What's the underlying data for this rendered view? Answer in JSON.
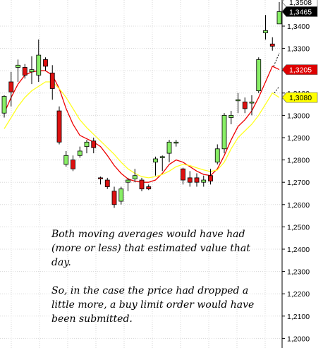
{
  "chart_data": {
    "type": "candlestick",
    "title": "",
    "xlabel": "",
    "ylabel": "",
    "ylim": [
      1.195,
      1.351
    ],
    "y_ticks": [
      "1,2000",
      "1,2100",
      "1,2200",
      "1,2300",
      "1,2400",
      "1,2500",
      "1,2600",
      "1,2700",
      "1,2800",
      "1,2900",
      "1,3000",
      "1,3100",
      "1,3200",
      "1,3300",
      "1,3400"
    ],
    "y_tick_values": [
      1.2,
      1.21,
      1.22,
      1.23,
      1.24,
      1.25,
      1.26,
      1.27,
      1.28,
      1.29,
      1.3,
      1.31,
      1.32,
      1.33,
      1.34
    ],
    "grid": true,
    "price_tags": [
      {
        "label": "1,3508",
        "value": 1.3508,
        "color": "#ffffff"
      },
      {
        "label": "1,3465",
        "value": 1.3465,
        "color": "#000000"
      },
      {
        "label": "1,3205",
        "value": 1.3205,
        "color": "#dd0000"
      },
      {
        "label": "1,3080",
        "value": 1.308,
        "color": "#ffff00"
      }
    ],
    "candles": [
      {
        "o": 1.301,
        "h": 1.309,
        "l": 1.299,
        "c": 1.3085
      },
      {
        "o": 1.315,
        "h": 1.3195,
        "l": 1.304,
        "c": 1.3105
      },
      {
        "o": 1.3215,
        "h": 1.325,
        "l": 1.315,
        "c": 1.3225
      },
      {
        "o": 1.3215,
        "h": 1.323,
        "l": 1.3165,
        "c": 1.318
      },
      {
        "o": 1.3195,
        "h": 1.3265,
        "l": 1.314,
        "c": 1.3205
      },
      {
        "o": 1.318,
        "h": 1.334,
        "l": 1.315,
        "c": 1.327
      },
      {
        "o": 1.325,
        "h": 1.326,
        "l": 1.32,
        "c": 1.322
      },
      {
        "o": 1.319,
        "h": 1.3225,
        "l": 1.307,
        "c": 1.312
      },
      {
        "o": 1.302,
        "h": 1.304,
        "l": 1.287,
        "c": 1.288
      },
      {
        "o": 1.278,
        "h": 1.284,
        "l": 1.277,
        "c": 1.282
      },
      {
        "o": 1.28,
        "h": 1.282,
        "l": 1.275,
        "c": 1.276
      },
      {
        "o": 1.282,
        "h": 1.286,
        "l": 1.281,
        "c": 1.284
      },
      {
        "o": 1.286,
        "h": 1.289,
        "l": 1.283,
        "c": 1.288
      },
      {
        "o": 1.2885,
        "h": 1.29,
        "l": 1.283,
        "c": 1.2855
      },
      {
        "o": 1.272,
        "h": 1.2725,
        "l": 1.269,
        "c": 1.2718
      },
      {
        "o": 1.271,
        "h": 1.272,
        "l": 1.267,
        "c": 1.268
      },
      {
        "o": 1.266,
        "h": 1.268,
        "l": 1.2585,
        "c": 1.26
      },
      {
        "o": 1.2615,
        "h": 1.268,
        "l": 1.26,
        "c": 1.267
      },
      {
        "o": 1.27,
        "h": 1.272,
        "l": 1.266,
        "c": 1.271
      },
      {
        "o": 1.2715,
        "h": 1.276,
        "l": 1.27,
        "c": 1.273
      },
      {
        "o": 1.271,
        "h": 1.272,
        "l": 1.266,
        "c": 1.267
      },
      {
        "o": 1.268,
        "h": 1.269,
        "l": 1.2665,
        "c": 1.267
      },
      {
        "o": 1.279,
        "h": 1.2815,
        "l": 1.273,
        "c": 1.2805
      },
      {
        "o": 1.281,
        "h": 1.282,
        "l": 1.275,
        "c": 1.2815
      },
      {
        "o": 1.283,
        "h": 1.289,
        "l": 1.279,
        "c": 1.288
      },
      {
        "o": 1.288,
        "h": 1.289,
        "l": 1.286,
        "c": 1.288
      },
      {
        "o": 1.276,
        "h": 1.2765,
        "l": 1.269,
        "c": 1.271
      },
      {
        "o": 1.272,
        "h": 1.275,
        "l": 1.268,
        "c": 1.27
      },
      {
        "o": 1.272,
        "h": 1.274,
        "l": 1.268,
        "c": 1.27
      },
      {
        "o": 1.27,
        "h": 1.273,
        "l": 1.268,
        "c": 1.271
      },
      {
        "o": 1.273,
        "h": 1.276,
        "l": 1.269,
        "c": 1.2705
      },
      {
        "o": 1.279,
        "h": 1.287,
        "l": 1.278,
        "c": 1.285
      },
      {
        "o": 1.285,
        "h": 1.301,
        "l": 1.283,
        "c": 1.3
      },
      {
        "o": 1.299,
        "h": 1.302,
        "l": 1.296,
        "c": 1.3
      },
      {
        "o": 1.307,
        "h": 1.31,
        "l": 1.301,
        "c": 1.307
      },
      {
        "o": 1.306,
        "h": 1.308,
        "l": 1.301,
        "c": 1.303
      },
      {
        "o": 1.3055,
        "h": 1.309,
        "l": 1.3,
        "c": 1.306
      },
      {
        "o": 1.311,
        "h": 1.326,
        "l": 1.31,
        "c": 1.325
      },
      {
        "o": 1.337,
        "h": 1.345,
        "l": 1.334,
        "c": 1.338
      },
      {
        "o": 1.332,
        "h": 1.335,
        "l": 1.329,
        "c": 1.331
      },
      {
        "o": 1.341,
        "h": 1.3508,
        "l": 1.341,
        "c": 1.3465
      }
    ],
    "series": [
      {
        "color": "#ee0000",
        "style": "moving-average",
        "values": [
          1.301,
          1.308,
          1.314,
          1.318,
          1.3195,
          1.32,
          1.32,
          1.318,
          1.312,
          1.303,
          1.296,
          1.291,
          1.2895,
          1.288,
          1.286,
          1.282,
          1.2775,
          1.274,
          1.2715,
          1.2705,
          1.27,
          1.27,
          1.271,
          1.274,
          1.278,
          1.28,
          1.279,
          1.277,
          1.275,
          1.2735,
          1.273,
          1.276,
          1.282,
          1.289,
          1.295,
          1.298,
          1.302,
          1.308,
          1.315,
          1.322,
          1.3205
        ]
      },
      {
        "color": "#ffff22",
        "style": "moving-average",
        "values": [
          1.294,
          1.299,
          1.304,
          1.308,
          1.311,
          1.313,
          1.315,
          1.315,
          1.312,
          1.308,
          1.303,
          1.298,
          1.2945,
          1.2915,
          1.2885,
          1.2855,
          1.2825,
          1.279,
          1.276,
          1.274,
          1.2725,
          1.272,
          1.2725,
          1.2735,
          1.275,
          1.277,
          1.278,
          1.2775,
          1.2765,
          1.2755,
          1.2748,
          1.2755,
          1.279,
          1.285,
          1.29,
          1.293,
          1.296,
          1.3,
          1.305,
          1.31,
          1.308
        ]
      }
    ]
  },
  "annotation": {
    "line1": "Both moving averages would have had",
    "line2": "(more or less) that estimated value that",
    "line3": "day.",
    "line4": "So, in the case the price had dropped a",
    "line5": "little more, a buy limit order would have",
    "line6": "been submitted."
  }
}
